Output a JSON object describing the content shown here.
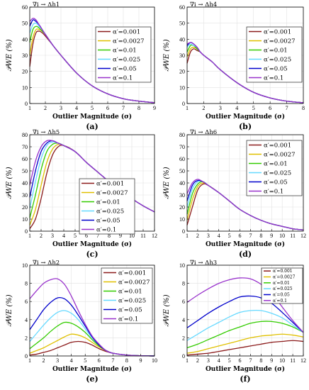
{
  "colors": [
    "#8b1a1a",
    "#e0c000",
    "#33cc00",
    "#66d9ff",
    "#0000cc",
    "#9933cc"
  ],
  "series_names": [
    "α′=0.001",
    "α′=0.0027",
    "α′=0.01",
    "α′=0.025",
    "α′=0.05",
    "α′=0.1"
  ],
  "ylabel": "𝒫WE (%)",
  "xlabel": "Outlier Magnitude (σ)",
  "chart_data": [
    {
      "type": "line",
      "panel_label": "(a)",
      "title": "∇i → Δh1",
      "xlabel": "Outlier Magnitude (σ)",
      "ylabel": "𝒫WE (%)",
      "xlim": [
        1,
        9
      ],
      "ylim": [
        0,
        60
      ],
      "xticks": [
        1,
        2,
        3,
        4,
        5,
        6,
        7,
        8,
        9
      ],
      "yticks": [
        0,
        10,
        20,
        30,
        40,
        50,
        60
      ],
      "grid": true,
      "legend": "top-right",
      "x": [
        1.0,
        1.2,
        1.4,
        1.6,
        1.8,
        2.0,
        2.5,
        3.0,
        4.0,
        5.0,
        6.0,
        7.0,
        8.0,
        9.0
      ],
      "series": [
        {
          "name": "α′=0.001",
          "values": [
            23,
            37,
            44,
            45,
            44,
            42,
            36,
            30,
            19,
            11,
            6,
            3,
            1.5,
            0.5
          ]
        },
        {
          "name": "α′=0.0027",
          "values": [
            30,
            41,
            46,
            46,
            45,
            43,
            36,
            30,
            19,
            11,
            6,
            3,
            1.5,
            0.5
          ]
        },
        {
          "name": "α′=0.01",
          "values": [
            38,
            46,
            48,
            47,
            45,
            43,
            36,
            30,
            19,
            11,
            6,
            3,
            1.5,
            0.5
          ]
        },
        {
          "name": "α′=0.025",
          "values": [
            44,
            49,
            50,
            48,
            46,
            43,
            36,
            30,
            19,
            11,
            6,
            3,
            1.5,
            0.5
          ]
        },
        {
          "name": "α′=0.05",
          "values": [
            48,
            52,
            51,
            49,
            46,
            43,
            36,
            30,
            19,
            11,
            6,
            3,
            1.5,
            0.5
          ]
        },
        {
          "name": "α′=0.1",
          "values": [
            51,
            53,
            52,
            49,
            46,
            43,
            36,
            30,
            19,
            11,
            6,
            3,
            1.5,
            0.5
          ]
        }
      ]
    },
    {
      "type": "line",
      "panel_label": "(b)",
      "title": "∇i → Δh4",
      "xlabel": "Outlier Magnitude (σ)",
      "ylabel": "𝒫WE (%)",
      "xlim": [
        1,
        8
      ],
      "ylim": [
        0,
        60
      ],
      "xticks": [
        1,
        2,
        3,
        4,
        5,
        6,
        7,
        8
      ],
      "yticks": [
        0,
        10,
        20,
        30,
        40,
        50,
        60
      ],
      "grid": true,
      "legend": "top-right",
      "x": [
        1.0,
        1.2,
        1.4,
        1.6,
        1.8,
        2.0,
        2.5,
        3.0,
        4.0,
        5.0,
        6.0,
        7.0,
        8.0
      ],
      "series": [
        {
          "name": "α′=0.001",
          "values": [
            25,
            32,
            34,
            33,
            32,
            30,
            26,
            21,
            13,
            7,
            3.5,
            1.5,
            0.5
          ]
        },
        {
          "name": "α′=0.0027",
          "values": [
            29,
            34,
            35,
            34,
            32,
            30,
            26,
            21,
            13,
            7,
            3.5,
            1.5,
            0.5
          ]
        },
        {
          "name": "α′=0.01",
          "values": [
            32,
            36,
            36,
            34,
            32,
            30,
            26,
            21,
            13,
            7,
            3.5,
            1.5,
            0.5
          ]
        },
        {
          "name": "α′=0.025",
          "values": [
            35,
            37,
            36,
            35,
            32,
            30,
            26,
            21,
            13,
            7,
            3.5,
            1.5,
            0.5
          ]
        },
        {
          "name": "α′=0.05",
          "values": [
            36,
            38,
            37,
            35,
            32,
            30,
            26,
            21,
            13,
            7,
            3.5,
            1.5,
            0.5
          ]
        },
        {
          "name": "α′=0.1",
          "values": [
            37,
            38,
            37,
            35,
            32,
            30,
            26,
            21,
            13,
            7,
            3.5,
            1.5,
            0.5
          ]
        }
      ]
    },
    {
      "type": "line",
      "panel_label": "(c)",
      "title": "∇i → Δh5",
      "xlabel": "Outlier Magnitude (σ)",
      "ylabel": "𝒫WE (%)",
      "xlim": [
        1,
        12
      ],
      "ylim": [
        0,
        80
      ],
      "xticks": [
        1,
        2,
        3,
        4,
        5,
        6,
        7,
        8,
        9,
        10,
        11,
        12
      ],
      "yticks": [
        0,
        10,
        20,
        30,
        40,
        50,
        60,
        70,
        80
      ],
      "grid": true,
      "legend": "bottom-center",
      "x": [
        1.0,
        1.5,
        2.0,
        2.5,
        3.0,
        3.5,
        4.0,
        5.0,
        6.0,
        7.0,
        8.0,
        9.0,
        10.0,
        11.0,
        12.0
      ],
      "series": [
        {
          "name": "α′=0.001",
          "values": [
            2,
            10,
            27,
            48,
            63,
            70,
            71,
            66,
            57,
            49,
            41,
            34,
            27,
            21,
            16
          ]
        },
        {
          "name": "α′=0.0027",
          "values": [
            5,
            18,
            38,
            57,
            68,
            72,
            71,
            66,
            57,
            49,
            41,
            34,
            27,
            21,
            16
          ]
        },
        {
          "name": "α′=0.01",
          "values": [
            11,
            30,
            51,
            66,
            72,
            73,
            71,
            66,
            57,
            49,
            41,
            34,
            27,
            21,
            16
          ]
        },
        {
          "name": "α′=0.025",
          "values": [
            19,
            41,
            60,
            71,
            74,
            73,
            71,
            66,
            57,
            49,
            41,
            34,
            27,
            21,
            16
          ]
        },
        {
          "name": "α′=0.05",
          "values": [
            28,
            50,
            66,
            73,
            75,
            73,
            71,
            66,
            57,
            49,
            41,
            34,
            27,
            21,
            16
          ]
        },
        {
          "name": "α′=0.1",
          "values": [
            38,
            58,
            70,
            75,
            75,
            73,
            71,
            66,
            57,
            49,
            41,
            34,
            27,
            21,
            16
          ]
        }
      ]
    },
    {
      "type": "line",
      "panel_label": "(d)",
      "title": "∇i → Δh6",
      "xlabel": "Outlier Magnitude (σ)",
      "ylabel": "𝒫WE (%)",
      "xlim": [
        1,
        12
      ],
      "ylim": [
        0,
        80
      ],
      "xticks": [
        1,
        2,
        3,
        4,
        5,
        6,
        7,
        8,
        9,
        10,
        11,
        12
      ],
      "yticks": [
        0,
        10,
        20,
        30,
        40,
        50,
        60,
        70,
        80
      ],
      "grid": true,
      "legend": "top-right",
      "x": [
        1.0,
        1.5,
        2.0,
        2.5,
        3.0,
        4.0,
        5.0,
        6.0,
        7.0,
        8.0,
        9.0,
        10.0,
        11.0,
        12.0
      ],
      "series": [
        {
          "name": "α′=0.001",
          "values": [
            5,
            20,
            34,
            39,
            38,
            32,
            25,
            18,
            13,
            9,
            6,
            4,
            2,
            1
          ]
        },
        {
          "name": "α′=0.0027",
          "values": [
            9,
            26,
            37,
            40,
            38,
            32,
            25,
            18,
            13,
            9,
            6,
            4,
            2,
            1
          ]
        },
        {
          "name": "α′=0.01",
          "values": [
            14,
            31,
            39,
            41,
            38,
            32,
            25,
            18,
            13,
            9,
            6,
            4,
            2,
            1
          ]
        },
        {
          "name": "α′=0.025",
          "values": [
            20,
            35,
            41,
            41,
            38,
            32,
            25,
            18,
            13,
            9,
            6,
            4,
            2,
            1
          ]
        },
        {
          "name": "α′=0.05",
          "values": [
            25,
            38,
            42,
            41,
            38,
            32,
            25,
            18,
            13,
            9,
            6,
            4,
            2,
            1
          ]
        },
        {
          "name": "α′=0.1",
          "values": [
            31,
            40,
            43,
            41,
            38,
            32,
            25,
            18,
            13,
            9,
            6,
            4,
            2,
            1
          ]
        }
      ]
    },
    {
      "type": "line",
      "panel_label": "(e)",
      "title": "∇i → Δh2",
      "xlabel": "Outlier Magnitude (σ)",
      "ylabel": "𝒫WE (%)",
      "xlim": [
        1,
        10
      ],
      "ylim": [
        0,
        10
      ],
      "xticks": [
        1,
        2,
        3,
        4,
        5,
        6,
        7,
        8,
        9,
        10
      ],
      "yticks": [
        0,
        2,
        4,
        6,
        8,
        10
      ],
      "grid": true,
      "legend": "top-right",
      "x": [
        1.0,
        1.5,
        2.0,
        2.5,
        3.0,
        3.5,
        4.0,
        4.5,
        5.0,
        5.5,
        6.0,
        6.5,
        7.0,
        8.0,
        9.0,
        10.0
      ],
      "series": [
        {
          "name": "α′=0.001",
          "values": [
            0.1,
            0.2,
            0.4,
            0.6,
            0.9,
            1.2,
            1.5,
            1.6,
            1.5,
            1.2,
            0.8,
            0.5,
            0.3,
            0.1,
            0.03,
            0.0
          ]
        },
        {
          "name": "α′=0.0027",
          "values": [
            0.3,
            0.6,
            0.9,
            1.3,
            1.7,
            2.1,
            2.4,
            2.3,
            2.0,
            1.5,
            1.0,
            0.6,
            0.3,
            0.1,
            0.03,
            0.0
          ]
        },
        {
          "name": "α′=0.01",
          "values": [
            0.8,
            1.4,
            2.0,
            2.7,
            3.3,
            3.7,
            3.6,
            3.2,
            2.6,
            1.8,
            1.1,
            0.6,
            0.3,
            0.1,
            0.03,
            0.0
          ]
        },
        {
          "name": "α′=0.025",
          "values": [
            1.6,
            2.5,
            3.4,
            4.2,
            4.8,
            5.0,
            4.7,
            4.0,
            3.0,
            2.0,
            1.2,
            0.6,
            0.3,
            0.1,
            0.03,
            0.0
          ]
        },
        {
          "name": "α′=0.05",
          "values": [
            2.9,
            4.0,
            5.1,
            5.9,
            6.4,
            6.3,
            5.6,
            4.5,
            3.3,
            2.1,
            1.2,
            0.6,
            0.3,
            0.1,
            0.03,
            0.0
          ]
        },
        {
          "name": "α′=0.1",
          "values": [
            6.3,
            7.2,
            8.0,
            8.4,
            8.5,
            7.9,
            6.6,
            5.0,
            3.5,
            2.2,
            1.3,
            0.6,
            0.3,
            0.1,
            0.03,
            0.0
          ]
        }
      ]
    },
    {
      "type": "line",
      "panel_label": "(f)",
      "title": "∇i → Δh3",
      "xlabel": "Outlier Magnitude (σ)",
      "ylabel": "𝒫WE (%)",
      "xlim": [
        1,
        12
      ],
      "ylim": [
        0,
        10
      ],
      "xticks": [
        1,
        2,
        3,
        4,
        5,
        6,
        7,
        8,
        9,
        10,
        11,
        12
      ],
      "yticks": [
        0,
        2,
        4,
        6,
        8,
        10
      ],
      "grid": true,
      "legend": "top-right",
      "x": [
        1,
        2,
        3,
        4,
        5,
        6,
        7,
        8,
        9,
        10,
        11,
        12
      ],
      "series": [
        {
          "name": "α′=0.001",
          "values": [
            0.1,
            0.2,
            0.3,
            0.5,
            0.7,
            0.9,
            1.1,
            1.3,
            1.5,
            1.6,
            1.7,
            1.6
          ]
        },
        {
          "name": "α′=0.0027",
          "values": [
            0.3,
            0.5,
            0.8,
            1.1,
            1.4,
            1.7,
            2.0,
            2.2,
            2.3,
            2.4,
            2.3,
            2.1
          ]
        },
        {
          "name": "α′=0.01",
          "values": [
            0.9,
            1.3,
            1.8,
            2.3,
            2.8,
            3.2,
            3.6,
            3.8,
            3.8,
            3.6,
            3.2,
            2.6
          ]
        },
        {
          "name": "α′=0.025",
          "values": [
            1.7,
            2.4,
            3.1,
            3.7,
            4.3,
            4.8,
            5.0,
            5.0,
            4.7,
            4.2,
            3.4,
            2.6
          ]
        },
        {
          "name": "α′=0.05",
          "values": [
            3.1,
            3.9,
            4.7,
            5.4,
            6.0,
            6.5,
            6.6,
            6.4,
            5.8,
            4.8,
            3.7,
            2.6
          ]
        },
        {
          "name": "α′=0.1",
          "values": [
            5.9,
            6.7,
            7.4,
            8.0,
            8.4,
            8.6,
            8.5,
            7.9,
            6.9,
            5.4,
            3.9,
            2.6
          ]
        }
      ]
    }
  ]
}
